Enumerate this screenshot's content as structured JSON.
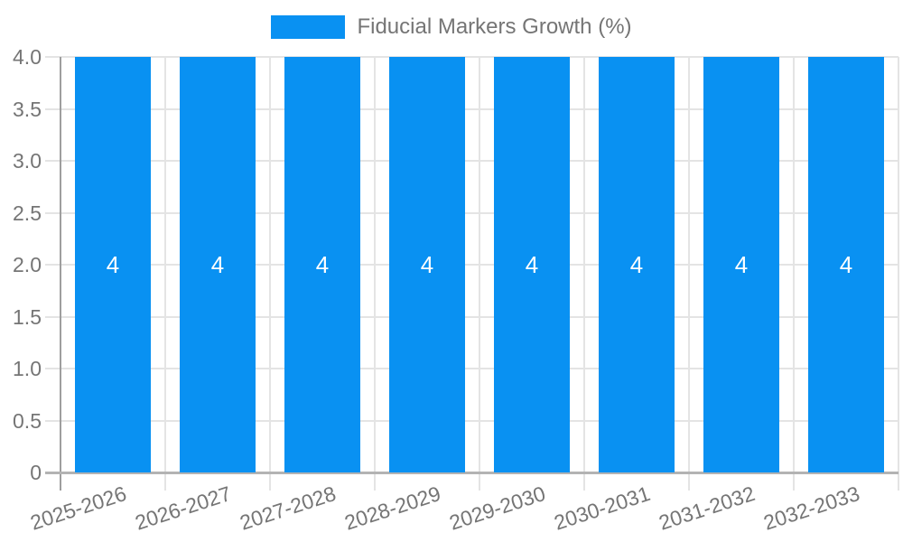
{
  "chart_data": {
    "type": "bar",
    "title": "Fiducial Markers Growth (%)",
    "categories": [
      "2025-2026",
      "2026-2027",
      "2027-2028",
      "2028-2029",
      "2029-2030",
      "2030-2031",
      "2031-2032",
      "2032-2033"
    ],
    "series": [
      {
        "name": "Fiducial Markers Growth (%)",
        "values": [
          4,
          4,
          4,
          4,
          4,
          4,
          4,
          4
        ]
      }
    ],
    "bar_value_labels": [
      "4",
      "4",
      "4",
      "4",
      "4",
      "4",
      "4",
      "4"
    ],
    "xlabel": "",
    "ylabel": "",
    "ylim": [
      0,
      4
    ],
    "ytick_values": [
      0,
      0.5,
      1,
      1.5,
      2,
      2.5,
      3,
      3.5,
      4
    ],
    "ytick_labels": [
      "0",
      "0.5",
      "1.0",
      "1.5",
      "2.0",
      "2.5",
      "3.0",
      "3.5",
      "4.0"
    ],
    "xtick_rotation_deg": -18,
    "legend_position": "top-center",
    "grid": "horizontal-and-vertical",
    "colors": {
      "bar": "#0991F2",
      "bar_label": "#ffffff",
      "axis_text": "#757575",
      "grid_line": "#e4e4e4",
      "axis_line_left": "#9e9e9e",
      "axis_line_bottom": "#b3b3b3",
      "background": "#ffffff"
    }
  }
}
